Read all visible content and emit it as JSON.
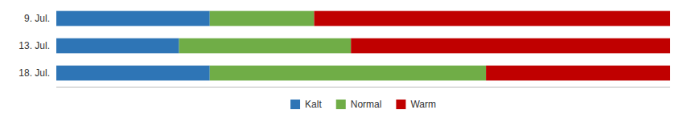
{
  "chart_data": {
    "type": "bar",
    "orientation": "horizontal",
    "stacked": true,
    "categories": [
      "18. Jul.",
      "13. Jul.",
      "9. Jul."
    ],
    "series": [
      {
        "name": "Kalt",
        "color": "#2E75B6",
        "values": [
          25,
          20,
          25
        ]
      },
      {
        "name": "Normal",
        "color": "#70AD47",
        "values": [
          45,
          28,
          17
        ]
      },
      {
        "name": "Warm",
        "color": "#C00000",
        "values": [
          30,
          52,
          58
        ]
      }
    ],
    "xlim": [
      0,
      100
    ],
    "xticks": [],
    "tick_labels": "y",
    "legend": "bottom"
  }
}
